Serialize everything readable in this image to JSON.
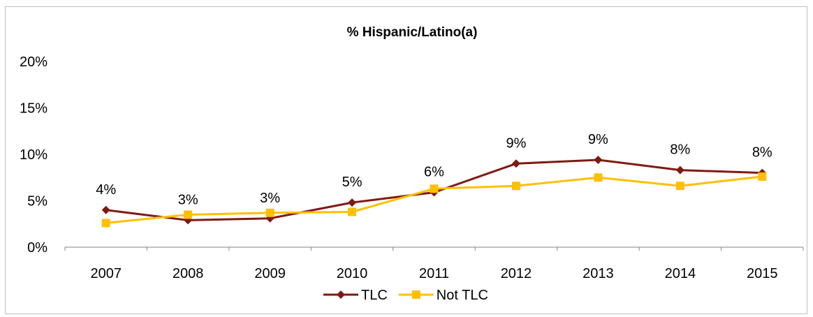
{
  "chart_data": {
    "type": "line",
    "title": "% Hispanic/Latino(a)",
    "categories": [
      "2007",
      "2008",
      "2009",
      "2010",
      "2011",
      "2012",
      "2013",
      "2014",
      "2015"
    ],
    "ylim": [
      0,
      20
    ],
    "yticks": [
      0,
      5,
      10,
      15,
      20
    ],
    "ytick_labels": [
      "0%",
      "5%",
      "10%",
      "15%",
      "20%"
    ],
    "grid": false,
    "legend_position": "bottom",
    "series": [
      {
        "name": "TLC",
        "color": "#7f1a12",
        "marker": "diamond",
        "values": [
          4.0,
          2.9,
          3.1,
          4.8,
          5.9,
          9.0,
          9.4,
          8.3,
          8.0
        ],
        "data_labels": [
          "4%",
          "3%",
          "3%",
          "5%",
          "6%",
          "9%",
          "9%",
          "8%",
          "8%"
        ]
      },
      {
        "name": "Not TLC",
        "color": "#ffc000",
        "marker": "square",
        "values": [
          2.6,
          3.5,
          3.7,
          3.8,
          6.3,
          6.6,
          7.5,
          6.6,
          7.6
        ]
      }
    ]
  }
}
